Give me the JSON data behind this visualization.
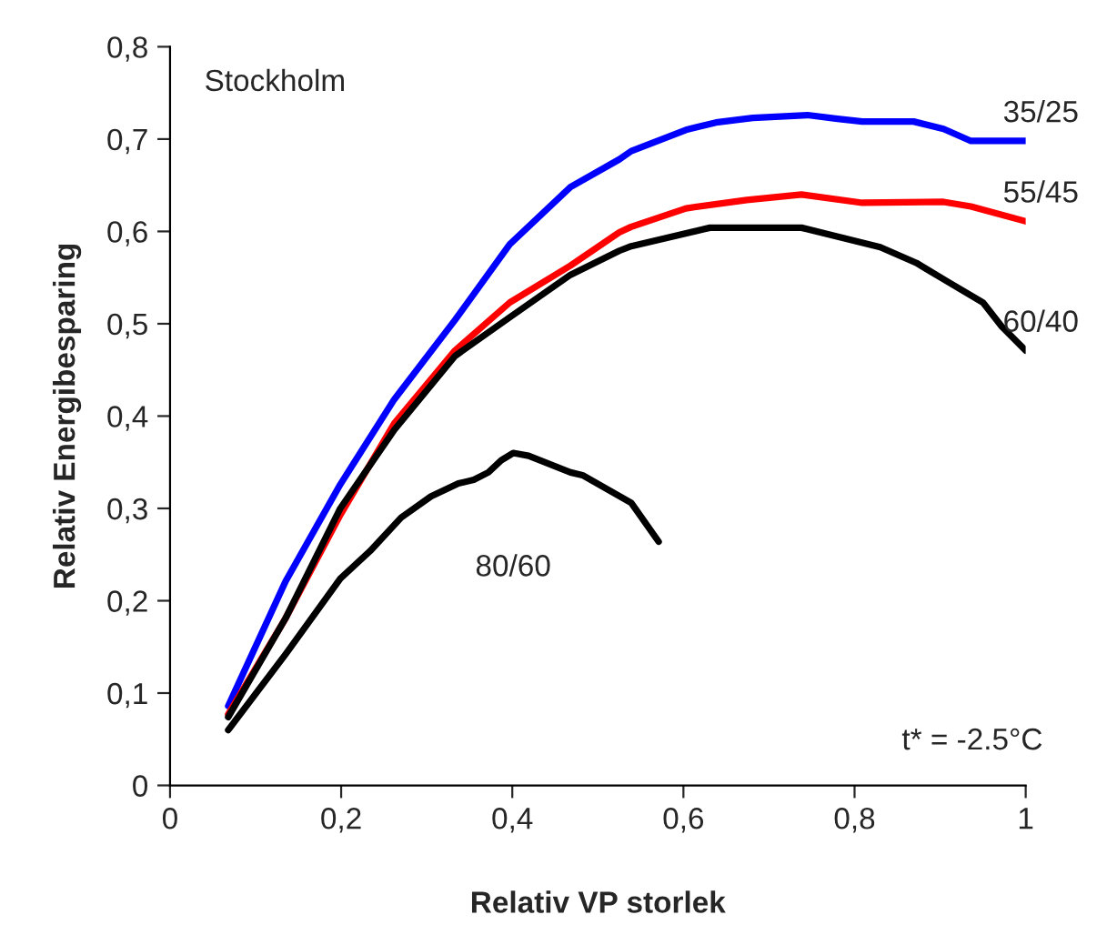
{
  "chart_data": {
    "type": "line",
    "xlabel": "Relativ VP storlek",
    "ylabel": "Relativ Energibesparing",
    "annotations": [
      "Stockholm",
      "t* = -2.5°C"
    ],
    "xlim": [
      0,
      1
    ],
    "ylim": [
      0,
      0.8
    ],
    "xticks": [
      0,
      {
        "value": 0.2,
        "label": "0,2"
      },
      {
        "value": 0.4,
        "label": "0,4"
      },
      {
        "value": 0.6,
        "label": "0,6"
      },
      {
        "value": 0.8,
        "label": "0,8"
      },
      1
    ],
    "yticks": [
      0,
      {
        "value": 0.1,
        "label": "0,1"
      },
      {
        "value": 0.2,
        "label": "0,2"
      },
      {
        "value": 0.3,
        "label": "0,3"
      },
      {
        "value": 0.4,
        "label": "0,4"
      },
      {
        "value": 0.5,
        "label": "0,5"
      },
      {
        "value": 0.6,
        "label": "0,6"
      },
      {
        "value": 0.7,
        "label": "0,7"
      },
      {
        "value": 0.8,
        "label": "0,8"
      }
    ],
    "grid": false,
    "legend": false,
    "marker": "none",
    "line_style": "solid",
    "series": [
      {
        "name": "35/25",
        "color": "#0000ff",
        "x": [
          0.068,
          0.135,
          0.199,
          0.262,
          0.333,
          0.397,
          0.468,
          0.525,
          0.539,
          0.603,
          0.638,
          0.681,
          0.745,
          0.78,
          0.809,
          0.869,
          0.904,
          0.936,
          1.0
        ],
        "values": [
          0.086,
          0.221,
          0.326,
          0.418,
          0.504,
          0.586,
          0.648,
          0.678,
          0.687,
          0.71,
          0.718,
          0.723,
          0.726,
          0.722,
          0.719,
          0.719,
          0.711,
          0.698,
          0.698
        ]
      },
      {
        "name": "55/45",
        "color": "#ff0000",
        "x": [
          0.068,
          0.135,
          0.199,
          0.262,
          0.333,
          0.397,
          0.468,
          0.525,
          0.539,
          0.603,
          0.674,
          0.738,
          0.809,
          0.904,
          0.936,
          1.0
        ],
        "values": [
          0.077,
          0.181,
          0.293,
          0.392,
          0.471,
          0.523,
          0.563,
          0.599,
          0.605,
          0.625,
          0.634,
          0.64,
          0.631,
          0.632,
          0.627,
          0.611
        ]
      },
      {
        "name": "60/40",
        "color": "#000000",
        "x": [
          0.068,
          0.135,
          0.199,
          0.262,
          0.333,
          0.397,
          0.468,
          0.525,
          0.539,
          0.631,
          0.738,
          0.83,
          0.872,
          0.908,
          0.95,
          0.972,
          1.0
        ],
        "values": [
          0.074,
          0.181,
          0.3,
          0.385,
          0.465,
          0.507,
          0.553,
          0.579,
          0.584,
          0.604,
          0.604,
          0.583,
          0.566,
          0.546,
          0.523,
          0.497,
          0.471
        ]
      },
      {
        "name": "80/60",
        "color": "#000000",
        "x": [
          0.068,
          0.135,
          0.199,
          0.234,
          0.27,
          0.305,
          0.337,
          0.355,
          0.372,
          0.387,
          0.401,
          0.419,
          0.468,
          0.482,
          0.539,
          0.571
        ],
        "values": [
          0.06,
          0.142,
          0.224,
          0.254,
          0.29,
          0.313,
          0.327,
          0.331,
          0.339,
          0.352,
          0.36,
          0.357,
          0.339,
          0.336,
          0.306,
          0.264
        ]
      }
    ]
  }
}
